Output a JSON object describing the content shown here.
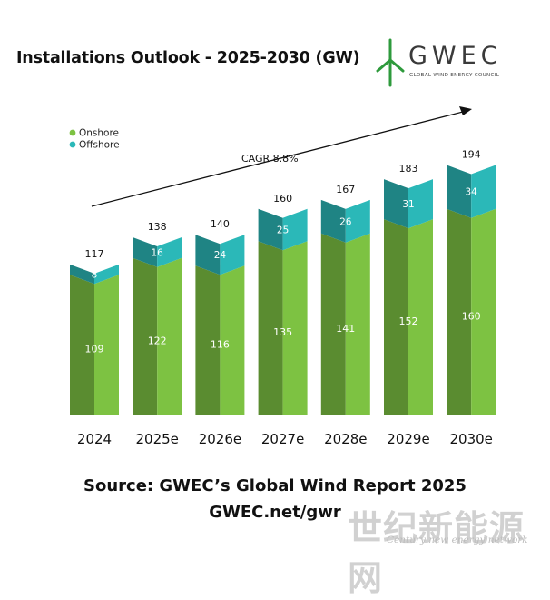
{
  "title": "Installations Outlook - 2025-2030 (GW)",
  "logo": {
    "wordmark": "GWEC",
    "subtitle": "GLOBAL WIND ENERGY COUNCIL",
    "icon": "wind-turbine-icon",
    "color": "#2e9a3c"
  },
  "chart_data": {
    "type": "bar",
    "stacked": true,
    "categories": [
      "2024",
      "2025e",
      "2026e",
      "2027e",
      "2028e",
      "2029e",
      "2030e"
    ],
    "series": [
      {
        "name": "Onshore",
        "values": [
          109,
          122,
          116,
          135,
          141,
          152,
          160
        ],
        "color": "#7dc242"
      },
      {
        "name": "Offshore",
        "values": [
          8,
          16,
          24,
          25,
          26,
          31,
          34
        ],
        "color": "#2bb8b8"
      }
    ],
    "totals": [
      117,
      138,
      140,
      160,
      167,
      183,
      194
    ],
    "ylim": [
      0,
      200
    ],
    "legend": "top-left",
    "grid": false,
    "annotation": "CAGR 8.8%"
  },
  "source": {
    "line1": "Source: GWEC’s Global Wind Report 2025",
    "line2": "GWEC.net/gwr"
  },
  "watermark": {
    "cn": "世纪新能源网",
    "en": "Century new energy network"
  }
}
